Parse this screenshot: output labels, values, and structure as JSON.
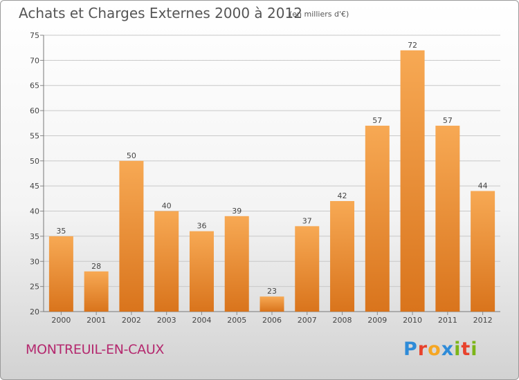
{
  "header": {
    "title": "Achats et Charges Externes 2000 à 2012",
    "subtitle": "(en milliers d'€)"
  },
  "footer": {
    "commune": "MONTREUIL-EN-CAUX",
    "brand_letters": [
      "P",
      "r",
      "o",
      "x",
      "i",
      "t",
      "i"
    ],
    "brand_colors": [
      "#2e8bd8",
      "#e8422c",
      "#f5a623",
      "#2e8bd8",
      "#7cb518",
      "#e8422c",
      "#7cb518"
    ]
  },
  "colors": {
    "bar_top": "#f7a954",
    "bar_bottom": "#d9741c",
    "grid": "#c8c8c8",
    "title": "#555555",
    "commune": "#b4286e"
  },
  "chart_data": {
    "type": "bar",
    "title": "Achats et Charges Externes 2000 à 2012",
    "subtitle": "(en milliers d'€)",
    "categories": [
      "2000",
      "2001",
      "2002",
      "2003",
      "2004",
      "2005",
      "2006",
      "2007",
      "2008",
      "2009",
      "2010",
      "2011",
      "2012"
    ],
    "values": [
      35,
      28,
      50,
      40,
      36,
      39,
      23,
      37,
      42,
      57,
      72,
      57,
      44
    ],
    "ylim": [
      20,
      75
    ],
    "yticks": [
      20,
      25,
      30,
      35,
      40,
      45,
      50,
      55,
      60,
      65,
      70,
      75
    ],
    "grid": true,
    "xlabel": "",
    "ylabel": ""
  }
}
